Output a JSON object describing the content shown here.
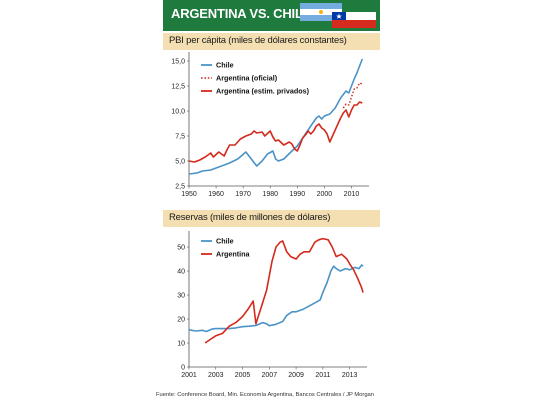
{
  "header": {
    "title": "ARGENTINA VS. CHILE"
  },
  "source": "Fuente: Conference Board, Min. Economía Argentina, Bancos Centrales / JP Morgan",
  "colors": {
    "chile": "#4a93c8",
    "argentina": "#d42a1c",
    "header": "#1f7a3e",
    "panel_bar": "#f4dfb2"
  },
  "chart_data": [
    {
      "type": "line",
      "title": "PBI per cápita (miles de dólares constantes)",
      "xlim": [
        1950,
        2015
      ],
      "ylim": [
        2.5,
        15.5
      ],
      "x_ticks": [
        "1950",
        "1960",
        "1970",
        "1980",
        "1990",
        "2000",
        "2010"
      ],
      "y_ticks": [
        "2,5",
        "5,0",
        "7,5",
        "10,0",
        "12,5",
        "15,0"
      ],
      "legend_position": "top-left",
      "series": [
        {
          "name": "Chile",
          "color": "#4a93c8",
          "style": "solid",
          "points": [
            [
              1950,
              3.7
            ],
            [
              1953,
              3.8
            ],
            [
              1955,
              4.0
            ],
            [
              1958,
              4.1
            ],
            [
              1960,
              4.3
            ],
            [
              1962,
              4.5
            ],
            [
              1965,
              4.8
            ],
            [
              1968,
              5.2
            ],
            [
              1971,
              5.9
            ],
            [
              1973,
              5.2
            ],
            [
              1975,
              4.5
            ],
            [
              1977,
              5.0
            ],
            [
              1979,
              5.7
            ],
            [
              1981,
              6.0
            ],
            [
              1982,
              5.2
            ],
            [
              1983,
              5.0
            ],
            [
              1985,
              5.2
            ],
            [
              1988,
              6.0
            ],
            [
              1990,
              6.5
            ],
            [
              1992,
              7.3
            ],
            [
              1995,
              8.5
            ],
            [
              1997,
              9.3
            ],
            [
              1998,
              9.5
            ],
            [
              1999,
              9.2
            ],
            [
              2000,
              9.5
            ],
            [
              2002,
              9.7
            ],
            [
              2004,
              10.3
            ],
            [
              2006,
              11.3
            ],
            [
              2008,
              12.0
            ],
            [
              2009,
              11.8
            ],
            [
              2010,
              12.5
            ],
            [
              2011,
              13.2
            ],
            [
              2012,
              13.8
            ],
            [
              2013,
              14.5
            ],
            [
              2014,
              15.2
            ]
          ]
        },
        {
          "name": "Argentina (oficial)",
          "color": "#d42a1c",
          "style": "dotted",
          "points": [
            [
              2007,
              10.3
            ],
            [
              2008,
              10.7
            ],
            [
              2009,
              10.6
            ],
            [
              2010,
              11.4
            ],
            [
              2011,
              12.2
            ],
            [
              2012,
              12.3
            ],
            [
              2013,
              12.8
            ],
            [
              2014,
              12.7
            ]
          ]
        },
        {
          "name": "Argentina (estim. privados)",
          "color": "#d42a1c",
          "style": "solid",
          "points": [
            [
              1950,
              5.0
            ],
            [
              1952,
              4.9
            ],
            [
              1954,
              5.1
            ],
            [
              1956,
              5.4
            ],
            [
              1958,
              5.8
            ],
            [
              1959,
              5.4
            ],
            [
              1961,
              5.9
            ],
            [
              1962,
              5.7
            ],
            [
              1963,
              5.5
            ],
            [
              1964,
              6.1
            ],
            [
              1965,
              6.6
            ],
            [
              1967,
              6.6
            ],
            [
              1969,
              7.2
            ],
            [
              1971,
              7.5
            ],
            [
              1973,
              7.7
            ],
            [
              1974,
              8.0
            ],
            [
              1975,
              7.8
            ],
            [
              1977,
              7.9
            ],
            [
              1978,
              7.5
            ],
            [
              1980,
              8.0
            ],
            [
              1981,
              7.4
            ],
            [
              1982,
              7.0
            ],
            [
              1983,
              7.1
            ],
            [
              1985,
              6.6
            ],
            [
              1987,
              6.9
            ],
            [
              1988,
              6.7
            ],
            [
              1989,
              6.2
            ],
            [
              1990,
              6.0
            ],
            [
              1991,
              6.6
            ],
            [
              1992,
              7.3
            ],
            [
              1993,
              7.6
            ],
            [
              1994,
              8.0
            ],
            [
              1995,
              7.7
            ],
            [
              1996,
              8.0
            ],
            [
              1997,
              8.5
            ],
            [
              1998,
              8.7
            ],
            [
              1999,
              8.3
            ],
            [
              2000,
              8.1
            ],
            [
              2001,
              7.7
            ],
            [
              2002,
              6.9
            ],
            [
              2003,
              7.5
            ],
            [
              2004,
              8.1
            ],
            [
              2005,
              8.7
            ],
            [
              2006,
              9.3
            ],
            [
              2007,
              9.8
            ],
            [
              2008,
              10.1
            ],
            [
              2009,
              9.4
            ],
            [
              2010,
              10.1
            ],
            [
              2011,
              10.6
            ],
            [
              2012,
              10.6
            ],
            [
              2013,
              10.9
            ],
            [
              2014,
              10.8
            ]
          ]
        }
      ]
    },
    {
      "type": "line",
      "title": "Reservas (miles de millones de dólares)",
      "xlim": [
        2001,
        2014
      ],
      "ylim": [
        0,
        55
      ],
      "x_ticks": [
        "2001",
        "2003",
        "2005",
        "2007",
        "2009",
        "2011",
        "2013"
      ],
      "y_ticks": [
        "0",
        "10",
        "20",
        "30",
        "40",
        "50"
      ],
      "legend_position": "top-left",
      "series": [
        {
          "name": "Chile",
          "color": "#4a93c8",
          "style": "solid",
          "points": [
            [
              2001.0,
              15.5
            ],
            [
              2001.5,
              15.0
            ],
            [
              2002.0,
              15.3
            ],
            [
              2002.3,
              14.8
            ],
            [
              2002.7,
              15.8
            ],
            [
              2003.0,
              16.0
            ],
            [
              2003.5,
              16.0
            ],
            [
              2004.0,
              16.0
            ],
            [
              2004.5,
              16.3
            ],
            [
              2005.0,
              16.8
            ],
            [
              2005.5,
              17.0
            ],
            [
              2006.0,
              17.3
            ],
            [
              2006.5,
              18.5
            ],
            [
              2006.8,
              18.0
            ],
            [
              2007.0,
              17.2
            ],
            [
              2007.5,
              17.8
            ],
            [
              2008.0,
              19.0
            ],
            [
              2008.3,
              21.5
            ],
            [
              2008.7,
              23.0
            ],
            [
              2009.0,
              23.0
            ],
            [
              2009.5,
              24.0
            ],
            [
              2010.0,
              25.5
            ],
            [
              2010.5,
              27.0
            ],
            [
              2010.8,
              28.0
            ],
            [
              2011.0,
              31.0
            ],
            [
              2011.3,
              35.0
            ],
            [
              2011.6,
              40.0
            ],
            [
              2011.8,
              42.0
            ],
            [
              2012.0,
              41.0
            ],
            [
              2012.3,
              40.0
            ],
            [
              2012.7,
              41.0
            ],
            [
              2013.0,
              40.5
            ],
            [
              2013.4,
              41.5
            ],
            [
              2013.7,
              41.0
            ],
            [
              2013.9,
              42.5
            ],
            [
              2014.0,
              42.0
            ]
          ]
        },
        {
          "name": "Argentina",
          "color": "#d42a1c",
          "style": "solid",
          "points": [
            [
              2002.2,
              10.0
            ],
            [
              2002.6,
              11.5
            ],
            [
              2003.0,
              13.0
            ],
            [
              2003.5,
              14.0
            ],
            [
              2004.0,
              17.0
            ],
            [
              2004.5,
              18.5
            ],
            [
              2005.0,
              21.0
            ],
            [
              2005.4,
              24.0
            ],
            [
              2005.8,
              27.5
            ],
            [
              2006.0,
              18.0
            ],
            [
              2006.4,
              25.0
            ],
            [
              2006.8,
              32.0
            ],
            [
              2007.0,
              38.0
            ],
            [
              2007.2,
              44.0
            ],
            [
              2007.5,
              50.0
            ],
            [
              2007.8,
              52.0
            ],
            [
              2008.0,
              52.5
            ],
            [
              2008.3,
              48.0
            ],
            [
              2008.6,
              46.0
            ],
            [
              2009.0,
              45.0
            ],
            [
              2009.3,
              47.0
            ],
            [
              2009.6,
              48.0
            ],
            [
              2010.0,
              48.0
            ],
            [
              2010.4,
              52.0
            ],
            [
              2010.7,
              53.0
            ],
            [
              2011.0,
              53.5
            ],
            [
              2011.4,
              53.0
            ],
            [
              2011.7,
              50.0
            ],
            [
              2012.0,
              46.0
            ],
            [
              2012.4,
              47.0
            ],
            [
              2012.8,
              45.0
            ],
            [
              2013.0,
              43.0
            ],
            [
              2013.3,
              40.5
            ],
            [
              2013.6,
              37.0
            ],
            [
              2013.9,
              33.0
            ],
            [
              2014.0,
              31.0
            ]
          ]
        }
      ]
    }
  ]
}
